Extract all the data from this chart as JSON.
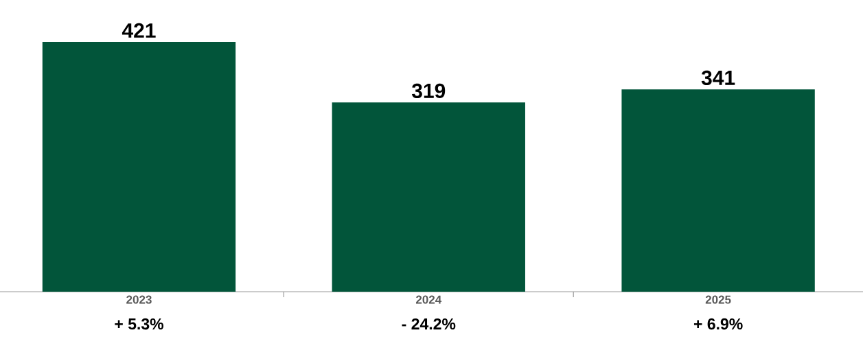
{
  "chart_data": {
    "type": "bar",
    "categories": [
      "2023",
      "2024",
      "2025"
    ],
    "values": [
      421,
      319,
      341
    ],
    "color": "#02553a",
    "data_labels": true,
    "annotations": [
      "+ 5.3%",
      "- 24.2%",
      "+ 6.9%"
    ]
  }
}
